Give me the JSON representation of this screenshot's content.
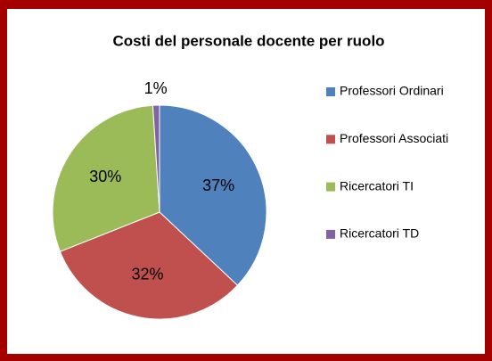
{
  "chart_data": {
    "type": "pie",
    "title": "Costi del personale docente per ruolo",
    "categories": [
      "Professori Ordinari",
      "Professori Associati",
      "Ricercatori TI",
      "Ricercatori TD"
    ],
    "values": [
      37,
      32,
      30,
      1
    ],
    "value_labels": [
      "37%",
      "32%",
      "30%",
      "1%"
    ],
    "colors": [
      "#4f81bd",
      "#c0504d",
      "#9bbb59",
      "#8064a2"
    ],
    "legend": "right"
  }
}
